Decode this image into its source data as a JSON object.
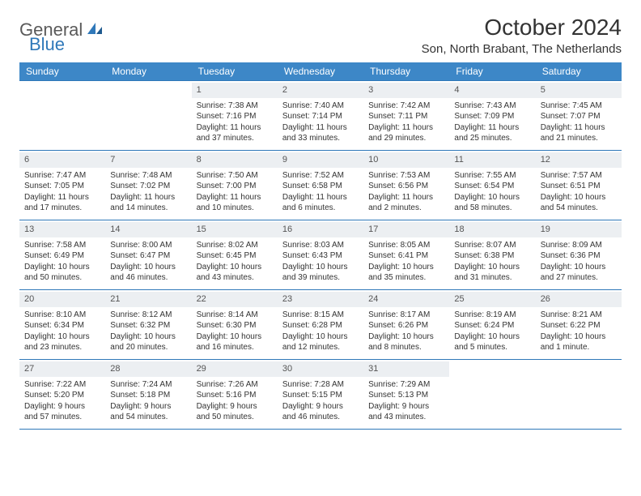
{
  "logo": {
    "part1": "General",
    "part2": "Blue"
  },
  "title": "October 2024",
  "location": "Son, North Brabant, The Netherlands",
  "colors": {
    "header_bg": "#3d87c7",
    "header_text": "#ffffff",
    "daynum_bg": "#eceff2",
    "rule": "#2f78b9",
    "logo_gray": "#5a5a5a",
    "logo_blue": "#2f78b9"
  },
  "dayHeaders": [
    "Sunday",
    "Monday",
    "Tuesday",
    "Wednesday",
    "Thursday",
    "Friday",
    "Saturday"
  ],
  "weeks": [
    [
      {
        "n": "",
        "sr": "",
        "ss": "",
        "dl": ""
      },
      {
        "n": "",
        "sr": "",
        "ss": "",
        "dl": ""
      },
      {
        "n": "1",
        "sr": "Sunrise: 7:38 AM",
        "ss": "Sunset: 7:16 PM",
        "dl": "Daylight: 11 hours and 37 minutes."
      },
      {
        "n": "2",
        "sr": "Sunrise: 7:40 AM",
        "ss": "Sunset: 7:14 PM",
        "dl": "Daylight: 11 hours and 33 minutes."
      },
      {
        "n": "3",
        "sr": "Sunrise: 7:42 AM",
        "ss": "Sunset: 7:11 PM",
        "dl": "Daylight: 11 hours and 29 minutes."
      },
      {
        "n": "4",
        "sr": "Sunrise: 7:43 AM",
        "ss": "Sunset: 7:09 PM",
        "dl": "Daylight: 11 hours and 25 minutes."
      },
      {
        "n": "5",
        "sr": "Sunrise: 7:45 AM",
        "ss": "Sunset: 7:07 PM",
        "dl": "Daylight: 11 hours and 21 minutes."
      }
    ],
    [
      {
        "n": "6",
        "sr": "Sunrise: 7:47 AM",
        "ss": "Sunset: 7:05 PM",
        "dl": "Daylight: 11 hours and 17 minutes."
      },
      {
        "n": "7",
        "sr": "Sunrise: 7:48 AM",
        "ss": "Sunset: 7:02 PM",
        "dl": "Daylight: 11 hours and 14 minutes."
      },
      {
        "n": "8",
        "sr": "Sunrise: 7:50 AM",
        "ss": "Sunset: 7:00 PM",
        "dl": "Daylight: 11 hours and 10 minutes."
      },
      {
        "n": "9",
        "sr": "Sunrise: 7:52 AM",
        "ss": "Sunset: 6:58 PM",
        "dl": "Daylight: 11 hours and 6 minutes."
      },
      {
        "n": "10",
        "sr": "Sunrise: 7:53 AM",
        "ss": "Sunset: 6:56 PM",
        "dl": "Daylight: 11 hours and 2 minutes."
      },
      {
        "n": "11",
        "sr": "Sunrise: 7:55 AM",
        "ss": "Sunset: 6:54 PM",
        "dl": "Daylight: 10 hours and 58 minutes."
      },
      {
        "n": "12",
        "sr": "Sunrise: 7:57 AM",
        "ss": "Sunset: 6:51 PM",
        "dl": "Daylight: 10 hours and 54 minutes."
      }
    ],
    [
      {
        "n": "13",
        "sr": "Sunrise: 7:58 AM",
        "ss": "Sunset: 6:49 PM",
        "dl": "Daylight: 10 hours and 50 minutes."
      },
      {
        "n": "14",
        "sr": "Sunrise: 8:00 AM",
        "ss": "Sunset: 6:47 PM",
        "dl": "Daylight: 10 hours and 46 minutes."
      },
      {
        "n": "15",
        "sr": "Sunrise: 8:02 AM",
        "ss": "Sunset: 6:45 PM",
        "dl": "Daylight: 10 hours and 43 minutes."
      },
      {
        "n": "16",
        "sr": "Sunrise: 8:03 AM",
        "ss": "Sunset: 6:43 PM",
        "dl": "Daylight: 10 hours and 39 minutes."
      },
      {
        "n": "17",
        "sr": "Sunrise: 8:05 AM",
        "ss": "Sunset: 6:41 PM",
        "dl": "Daylight: 10 hours and 35 minutes."
      },
      {
        "n": "18",
        "sr": "Sunrise: 8:07 AM",
        "ss": "Sunset: 6:38 PM",
        "dl": "Daylight: 10 hours and 31 minutes."
      },
      {
        "n": "19",
        "sr": "Sunrise: 8:09 AM",
        "ss": "Sunset: 6:36 PM",
        "dl": "Daylight: 10 hours and 27 minutes."
      }
    ],
    [
      {
        "n": "20",
        "sr": "Sunrise: 8:10 AM",
        "ss": "Sunset: 6:34 PM",
        "dl": "Daylight: 10 hours and 23 minutes."
      },
      {
        "n": "21",
        "sr": "Sunrise: 8:12 AM",
        "ss": "Sunset: 6:32 PM",
        "dl": "Daylight: 10 hours and 20 minutes."
      },
      {
        "n": "22",
        "sr": "Sunrise: 8:14 AM",
        "ss": "Sunset: 6:30 PM",
        "dl": "Daylight: 10 hours and 16 minutes."
      },
      {
        "n": "23",
        "sr": "Sunrise: 8:15 AM",
        "ss": "Sunset: 6:28 PM",
        "dl": "Daylight: 10 hours and 12 minutes."
      },
      {
        "n": "24",
        "sr": "Sunrise: 8:17 AM",
        "ss": "Sunset: 6:26 PM",
        "dl": "Daylight: 10 hours and 8 minutes."
      },
      {
        "n": "25",
        "sr": "Sunrise: 8:19 AM",
        "ss": "Sunset: 6:24 PM",
        "dl": "Daylight: 10 hours and 5 minutes."
      },
      {
        "n": "26",
        "sr": "Sunrise: 8:21 AM",
        "ss": "Sunset: 6:22 PM",
        "dl": "Daylight: 10 hours and 1 minute."
      }
    ],
    [
      {
        "n": "27",
        "sr": "Sunrise: 7:22 AM",
        "ss": "Sunset: 5:20 PM",
        "dl": "Daylight: 9 hours and 57 minutes."
      },
      {
        "n": "28",
        "sr": "Sunrise: 7:24 AM",
        "ss": "Sunset: 5:18 PM",
        "dl": "Daylight: 9 hours and 54 minutes."
      },
      {
        "n": "29",
        "sr": "Sunrise: 7:26 AM",
        "ss": "Sunset: 5:16 PM",
        "dl": "Daylight: 9 hours and 50 minutes."
      },
      {
        "n": "30",
        "sr": "Sunrise: 7:28 AM",
        "ss": "Sunset: 5:15 PM",
        "dl": "Daylight: 9 hours and 46 minutes."
      },
      {
        "n": "31",
        "sr": "Sunrise: 7:29 AM",
        "ss": "Sunset: 5:13 PM",
        "dl": "Daylight: 9 hours and 43 minutes."
      },
      {
        "n": "",
        "sr": "",
        "ss": "",
        "dl": ""
      },
      {
        "n": "",
        "sr": "",
        "ss": "",
        "dl": ""
      }
    ]
  ]
}
